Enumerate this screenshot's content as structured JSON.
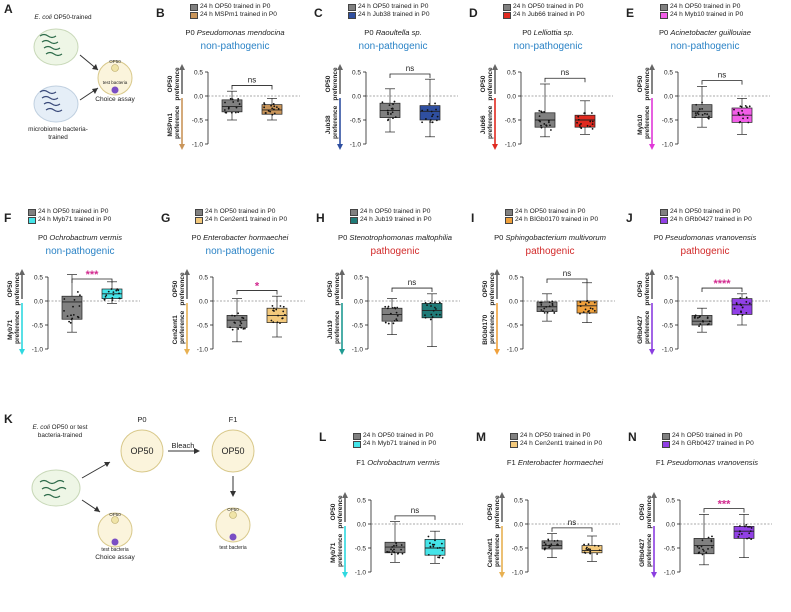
{
  "schematic_A": {
    "letter": "A",
    "top_label_italic": "E. coli",
    "top_label_rest": " OP50-trained",
    "bottom_label": "microbiome bacteria-trained",
    "plate_top": "OP50",
    "plate_bottom": "test bacteria",
    "assay": "Choice assay"
  },
  "schematic_K": {
    "letter": "K",
    "label_italic": "E. coli",
    "label_rest": " OP50 or test bacteria-trained",
    "p0": "P0",
    "f1": "F1",
    "op50_a": "OP50",
    "op50_b": "OP50",
    "bleach": "Bleach",
    "plate_op50_1": "OP50",
    "plate_test_1": "test bacteria",
    "assay_1": "Choice assay",
    "plate_op50_2": "OP50",
    "plate_test_2": "test bacteria",
    "assay_2": "Choice assay"
  },
  "axis_common": {
    "top_label": "OP50",
    "pref": "preference",
    "ticks": [
      "0.5",
      "0.0",
      "-0.5",
      "-1.0"
    ],
    "sig_ns": "ns"
  },
  "panels": [
    {
      "letter": "B",
      "gen": "P0",
      "species": "Pseudomonas mendocina",
      "category": "non-pathogenic",
      "cat_type": "np",
      "legend": [
        "24 h OP50 trained in P0",
        "24 h MSPm1 trained in P0"
      ],
      "bottom_label": "MSPm1",
      "sig": "ns",
      "colors": {
        "a": "#808080",
        "b": "#c9955a",
        "arrow": "#c9955a"
      }
    },
    {
      "letter": "C",
      "gen": "P0",
      "species": "Raoultella sp.",
      "category": "non-pathogenic",
      "cat_type": "np",
      "legend": [
        "24 h OP50 trained in P0",
        "24 h Jub38 trained in P0"
      ],
      "bottom_label": "Jub38",
      "sig": "ns",
      "colors": {
        "a": "#808080",
        "b": "#2f4fa0",
        "arrow": "#2f4fa0"
      }
    },
    {
      "letter": "D",
      "gen": "P0",
      "species": "Lelliottia sp.",
      "category": "non-pathogenic",
      "cat_type": "np",
      "legend": [
        "24 h OP50 trained in P0",
        "24 h Jub66 trained in P0"
      ],
      "bottom_label": "Jub66",
      "sig": "ns",
      "colors": {
        "a": "#808080",
        "b": "#e02a20",
        "arrow": "#e02a20"
      }
    },
    {
      "letter": "E",
      "gen": "P0",
      "species": "Acinetobacter guillouiae",
      "category": "non-pathogenic",
      "cat_type": "np",
      "legend": [
        "24 h OP50 trained in P0",
        "24 h Myb10 trained in P0"
      ],
      "bottom_label": "Myb10",
      "sig": "ns",
      "colors": {
        "a": "#808080",
        "b": "#f25ee8",
        "arrow": "#e038d8"
      }
    },
    {
      "letter": "F",
      "gen": "P0",
      "species": "Ochrobactrum vermis",
      "category": "non-pathogenic",
      "cat_type": "np",
      "legend": [
        "24 h OP50 trained in P0",
        "24 h Myb71 trained in P0"
      ],
      "bottom_label": "Myb71",
      "sig": "***",
      "colors": {
        "a": "#808080",
        "b": "#45e4e8",
        "arrow": "#2fd8e0"
      }
    },
    {
      "letter": "G",
      "gen": "P0",
      "species": "Enterobacter hormaechei",
      "category": "non-pathogenic",
      "cat_type": "np",
      "legend": [
        "24 h OP50 trained in P0",
        "24 h Cen2ent1 trained in P0"
      ],
      "bottom_label": "Cen2ent1",
      "sig": "*",
      "colors": {
        "a": "#808080",
        "b": "#f3c97c",
        "arrow": "#e8b152"
      }
    },
    {
      "letter": "H",
      "gen": "P0",
      "species": "Stenotrophomonas maltophilia",
      "category": "pathogenic",
      "cat_type": "p",
      "legend": [
        "24 h OP50 trained in P0",
        "24 h Jub19 trained in P0"
      ],
      "bottom_label": "Jub19",
      "sig": "ns",
      "colors": {
        "a": "#808080",
        "b": "#1f7b78",
        "arrow": "#1f9a92"
      }
    },
    {
      "letter": "I",
      "gen": "P0",
      "species": "Sphingobacterium multivorum",
      "category": "pathogenic",
      "cat_type": "p",
      "legend": [
        "24 h OP50 trained in P0",
        "24 h BIGb0170 trained in P0"
      ],
      "bottom_label": "BIGb0170",
      "sig": "ns",
      "colors": {
        "a": "#808080",
        "b": "#f0a13c",
        "arrow": "#f0a13c"
      }
    },
    {
      "letter": "J",
      "gen": "P0",
      "species": "Pseudomonas vranovensis",
      "category": "pathogenic",
      "cat_type": "p",
      "legend": [
        "24 h OP50 trained in P0",
        "24 h GRb0427 trained in P0"
      ],
      "bottom_label": "GRb0427",
      "sig": "****",
      "colors": {
        "a": "#808080",
        "b": "#9140e6",
        "arrow": "#8a3de0"
      }
    },
    {
      "letter": "L",
      "gen": "F1",
      "species": "Ochrobactrum vermis",
      "category": "",
      "cat_type": "np",
      "legend": [
        "24 h OP50 trained in P0",
        "24 h Myb71 trained in P0"
      ],
      "bottom_label": "Myb71",
      "sig": "ns",
      "colors": {
        "a": "#808080",
        "b": "#45e4e8",
        "arrow": "#2fd8e0"
      }
    },
    {
      "letter": "M",
      "gen": "F1",
      "species": "Enterobacter hormaechei",
      "category": "",
      "cat_type": "np",
      "legend": [
        "24 h OP50 trained in P0",
        "24 h Cen2ent1 trained in P0"
      ],
      "bottom_label": "Cen2ent1",
      "sig": "ns",
      "colors": {
        "a": "#808080",
        "b": "#f3c97c",
        "arrow": "#e8b152"
      }
    },
    {
      "letter": "N",
      "gen": "F1",
      "species": "Pseudomonas vranovensis",
      "category": "",
      "cat_type": "p",
      "legend": [
        "24 h OP50 trained in P0",
        "24 h GRb0427 trained in P0"
      ],
      "bottom_label": "GRb0427",
      "sig": "***",
      "colors": {
        "a": "#808080",
        "b": "#9140e6",
        "arrow": "#8a3de0"
      }
    }
  ],
  "chart_data": [
    {
      "panel": "B",
      "type": "box",
      "ylim": [
        -1,
        0.5
      ],
      "groups": [
        {
          "name": "24 h OP50 trained in P0",
          "q1": -0.33,
          "median": -0.22,
          "q3": -0.08,
          "min": -0.5,
          "max": 0.1
        },
        {
          "name": "24 h MSPm1 trained in P0",
          "q1": -0.38,
          "median": -0.29,
          "q3": -0.18,
          "min": -0.5,
          "max": -0.05
        }
      ]
    },
    {
      "panel": "C",
      "type": "box",
      "ylim": [
        -1,
        0.5
      ],
      "groups": [
        {
          "name": "24 h OP50 trained in P0",
          "q1": -0.45,
          "median": -0.3,
          "q3": -0.15,
          "min": -0.75,
          "max": 0.15
        },
        {
          "name": "24 h Jub38 trained in P0",
          "q1": -0.5,
          "median": -0.32,
          "q3": -0.2,
          "min": -0.85,
          "max": 0.35
        }
      ]
    },
    {
      "panel": "D",
      "type": "box",
      "ylim": [
        -1,
        0.5
      ],
      "groups": [
        {
          "name": "24 h OP50 trained in P0",
          "q1": -0.65,
          "median": -0.5,
          "q3": -0.35,
          "min": -0.85,
          "max": 0.25
        },
        {
          "name": "24 h Jub66 trained in P0",
          "q1": -0.65,
          "median": -0.5,
          "q3": -0.4,
          "min": -0.8,
          "max": -0.1
        }
      ]
    },
    {
      "panel": "E",
      "type": "box",
      "ylim": [
        -1,
        0.5
      ],
      "groups": [
        {
          "name": "24 h OP50 trained in P0",
          "q1": -0.45,
          "median": -0.32,
          "q3": -0.18,
          "min": -0.65,
          "max": 0.2
        },
        {
          "name": "24 h Myb10 trained in P0",
          "q1": -0.55,
          "median": -0.4,
          "q3": -0.25,
          "min": -0.8,
          "max": -0.05
        }
      ]
    },
    {
      "panel": "F",
      "type": "box",
      "ylim": [
        -1,
        0.5
      ],
      "groups": [
        {
          "name": "24 h OP50 trained in P0",
          "q1": -0.38,
          "median": -0.02,
          "q3": 0.1,
          "min": -0.65,
          "max": 0.55
        },
        {
          "name": "24 h Myb71 trained in P0",
          "q1": 0.05,
          "median": 0.15,
          "q3": 0.25,
          "min": -0.05,
          "max": 0.4
        }
      ]
    },
    {
      "panel": "G",
      "type": "box",
      "ylim": [
        -1,
        0.5
      ],
      "groups": [
        {
          "name": "24 h OP50 trained in P0",
          "q1": -0.55,
          "median": -0.4,
          "q3": -0.3,
          "min": -0.85,
          "max": 0.05
        },
        {
          "name": "24 h Cen2ent1 trained in P0",
          "q1": -0.45,
          "median": -0.3,
          "q3": -0.15,
          "min": -0.75,
          "max": 0.1
        }
      ]
    },
    {
      "panel": "H",
      "type": "box",
      "ylim": [
        -1,
        0.5
      ],
      "groups": [
        {
          "name": "24 h OP50 trained in P0",
          "q1": -0.42,
          "median": -0.28,
          "q3": -0.15,
          "min": -0.7,
          "max": 0.05
        },
        {
          "name": "24 h Jub19 trained in P0",
          "q1": -0.35,
          "median": -0.2,
          "q3": -0.05,
          "min": -0.95,
          "max": 0.15
        }
      ]
    },
    {
      "panel": "I",
      "type": "box",
      "ylim": [
        -1,
        0.5
      ],
      "groups": [
        {
          "name": "24 h OP50 trained in P0",
          "q1": -0.22,
          "median": -0.12,
          "q3": -0.02,
          "min": -0.42,
          "max": 0.15
        },
        {
          "name": "24 h BIGb0170 trained in P0",
          "q1": -0.25,
          "median": -0.1,
          "q3": 0.0,
          "min": -0.45,
          "max": 0.38
        }
      ]
    },
    {
      "panel": "J",
      "type": "box",
      "ylim": [
        -1,
        0.5
      ],
      "groups": [
        {
          "name": "24 h OP50 trained in P0",
          "q1": -0.5,
          "median": -0.42,
          "q3": -0.3,
          "min": -0.65,
          "max": -0.15
        },
        {
          "name": "24 h GRb0427 trained in P0",
          "q1": -0.28,
          "median": -0.08,
          "q3": 0.05,
          "min": -0.5,
          "max": 0.15
        }
      ]
    },
    {
      "panel": "L",
      "type": "box",
      "ylim": [
        -1,
        0.5
      ],
      "groups": [
        {
          "name": "24 h OP50 trained in P0",
          "q1": -0.6,
          "median": -0.48,
          "q3": -0.38,
          "min": -0.8,
          "max": 0.05
        },
        {
          "name": "24 h Myb71 trained in P0",
          "q1": -0.65,
          "median": -0.5,
          "q3": -0.32,
          "min": -0.82,
          "max": -0.15
        }
      ]
    },
    {
      "panel": "M",
      "type": "box",
      "ylim": [
        -1,
        0.5
      ],
      "groups": [
        {
          "name": "24 h OP50 trained in P0",
          "q1": -0.52,
          "median": -0.45,
          "q3": -0.35,
          "min": -0.7,
          "max": -0.2
        },
        {
          "name": "24 h Cen2ent1 trained in P0",
          "q1": -0.6,
          "median": -0.55,
          "q3": -0.45,
          "min": -0.78,
          "max": -0.25
        }
      ]
    },
    {
      "panel": "N",
      "type": "box",
      "ylim": [
        -1,
        0.5
      ],
      "groups": [
        {
          "name": "24 h OP50 trained in P0",
          "q1": -0.62,
          "median": -0.45,
          "q3": -0.3,
          "min": -0.85,
          "max": 0.2
        },
        {
          "name": "24 h GRb0427 trained in P0",
          "q1": -0.3,
          "median": -0.15,
          "q3": -0.05,
          "min": -0.7,
          "max": 0.2
        }
      ]
    }
  ]
}
